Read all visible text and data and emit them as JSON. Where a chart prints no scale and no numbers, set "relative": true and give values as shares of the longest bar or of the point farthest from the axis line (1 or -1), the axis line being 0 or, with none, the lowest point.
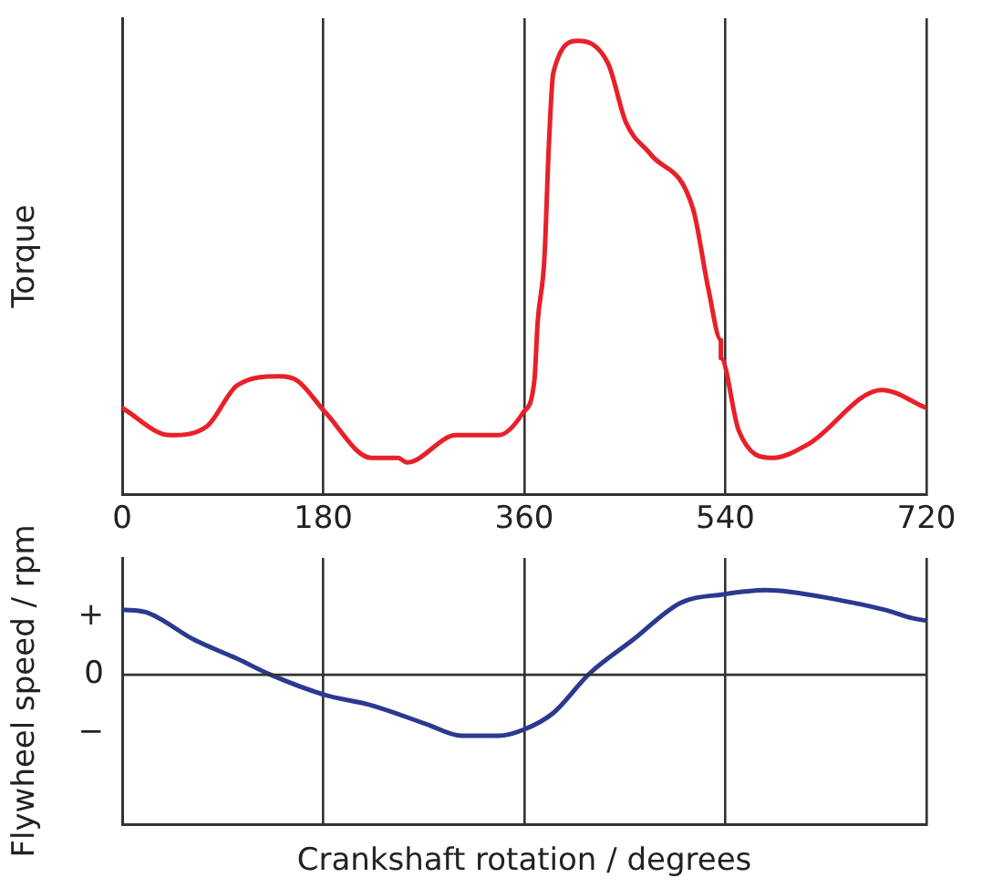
{
  "chart_data": [
    {
      "type": "line",
      "ylabel": "Torque",
      "xlim": [
        0,
        720
      ],
      "xticks": [
        0,
        180,
        360,
        540,
        720
      ],
      "relative": true,
      "grid": "x",
      "legend": false,
      "marker": "none",
      "series": [
        {
          "color": "#e8202a",
          "x": [
            0,
            43,
            76,
            103,
            141,
            157,
            182,
            223,
            247,
            255,
            299,
            337,
            359,
            369,
            372,
            378,
            382,
            386,
            408,
            435,
            451,
            473,
            511,
            525,
            536,
            536,
            552,
            582,
            614,
            680,
            720
          ],
          "values": [
            0.19,
            0.13,
            0.15,
            0.24,
            0.26,
            0.25,
            0.18,
            0.08,
            0.08,
            0.07,
            0.13,
            0.13,
            0.18,
            0.25,
            0.38,
            0.52,
            0.77,
            0.93,
            1.0,
            0.95,
            0.82,
            0.75,
            0.63,
            0.45,
            0.34,
            0.3,
            0.14,
            0.08,
            0.11,
            0.23,
            0.19
          ]
        }
      ]
    },
    {
      "type": "line",
      "ylabel": "Flywheel speed / rpm",
      "xlabel": "Crankshaft rotation / degrees",
      "xlim": [
        0,
        720
      ],
      "xticks": [
        0,
        180,
        360,
        540,
        720
      ],
      "relative": true,
      "annotations": [
        "+",
        "0",
        "−"
      ],
      "tick_labels": false,
      "grid": "x",
      "legend": false,
      "marker": "none",
      "ref_lines": [
        {
          "axis": "y",
          "value": 0,
          "color": "#333333"
        }
      ],
      "series": [
        {
          "color": "#2b3990",
          "x": [
            0,
            21,
            65,
            103,
            133,
            182,
            223,
            272,
            304,
            337,
            359,
            386,
            418,
            457,
            500,
            538,
            576,
            598,
            631,
            685,
            707,
            720
          ],
          "values": [
            0.77,
            0.74,
            0.41,
            0.19,
            0.0,
            -0.24,
            -0.36,
            -0.58,
            -0.72,
            -0.72,
            -0.65,
            -0.45,
            0.01,
            0.41,
            0.85,
            0.95,
            1.0,
            0.98,
            0.91,
            0.76,
            0.67,
            0.64
          ]
        }
      ]
    }
  ]
}
